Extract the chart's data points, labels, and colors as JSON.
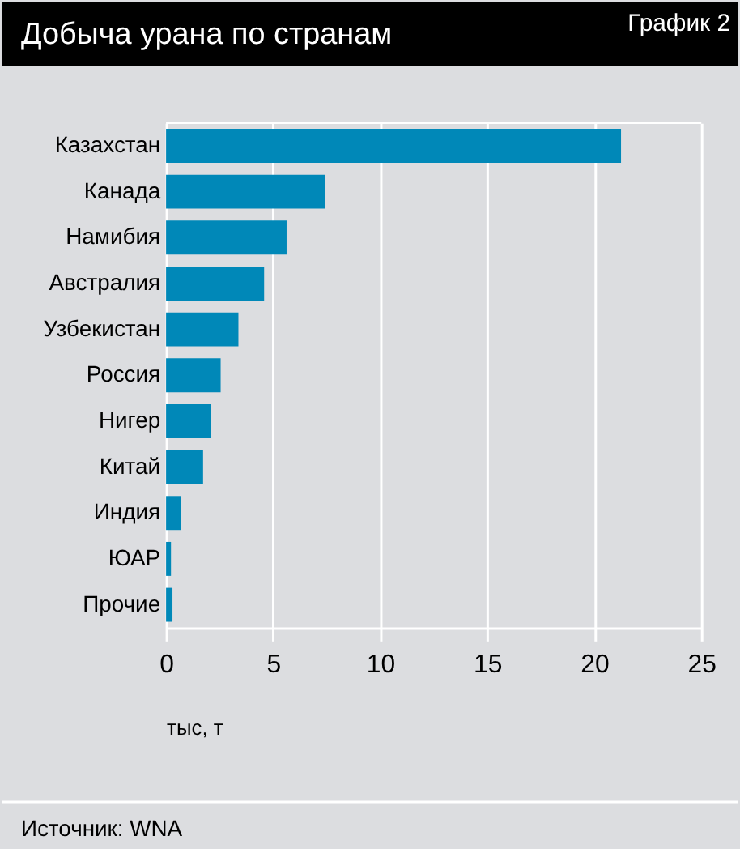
{
  "chart_data": {
    "type": "bar",
    "orientation": "horizontal",
    "title": "Добыча урана по странам",
    "categories": [
      "Казахстан",
      "Канада",
      "Намибия",
      "Австралия",
      "Узбекистан",
      "Россия",
      "Нигер",
      "Китай",
      "Индия",
      "ЮАР",
      "Прочие"
    ],
    "values": [
      21.25,
      7.43,
      5.63,
      4.58,
      3.38,
      2.55,
      2.1,
      1.73,
      0.68,
      0.23,
      0.3
    ],
    "color": "#0088b8",
    "xlim": [
      0,
      25
    ],
    "xticks": [
      0,
      5,
      10,
      15,
      20,
      25
    ],
    "xlabel": "тыс, т",
    "grid": "x",
    "annotations": [
      "График 2",
      "Источник: WNA"
    ]
  }
}
